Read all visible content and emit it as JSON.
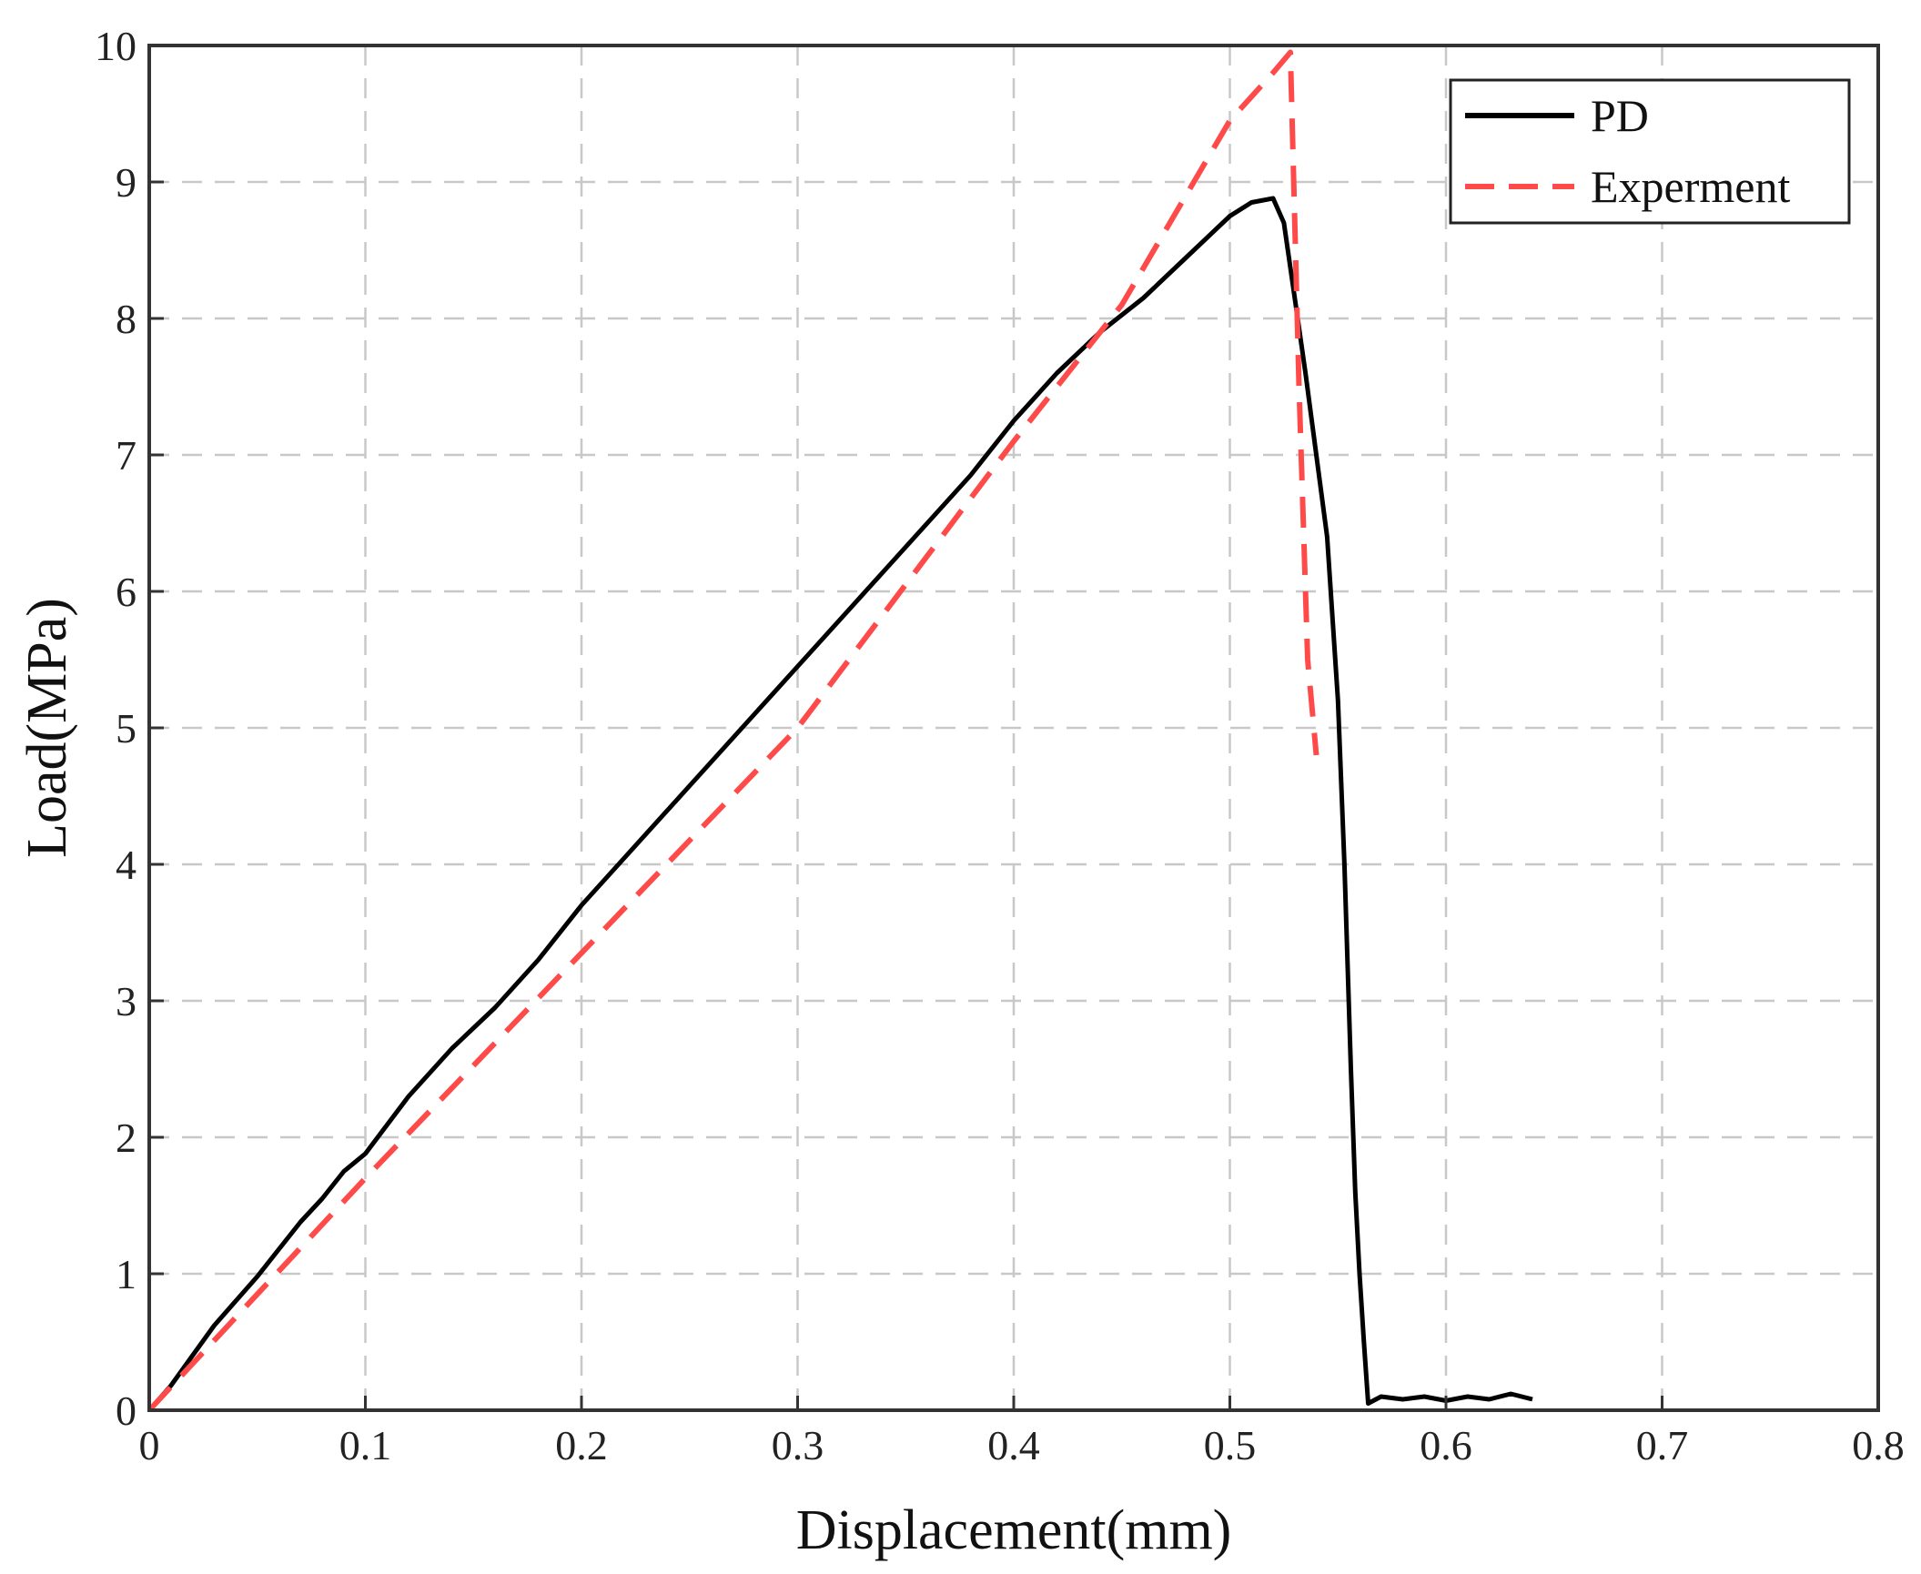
{
  "chart_data": {
    "type": "line",
    "xlabel": "Displacement(mm)",
    "ylabel": "Load(MPa)",
    "xlim": [
      0,
      0.8
    ],
    "ylim": [
      0,
      10
    ],
    "xticks": [
      "0",
      "0.1",
      "0.2",
      "0.3",
      "0.4",
      "0.5",
      "0.6",
      "0.7",
      "0.8"
    ],
    "yticks": [
      "0",
      "1",
      "2",
      "3",
      "4",
      "5",
      "6",
      "7",
      "8",
      "9",
      "10"
    ],
    "grid": true,
    "legend_position": "top-right",
    "series": [
      {
        "name": "PD",
        "color": "#000000",
        "style": "solid",
        "x": [
          0,
          0.01,
          0.02,
          0.03,
          0.04,
          0.05,
          0.06,
          0.07,
          0.08,
          0.09,
          0.1,
          0.12,
          0.14,
          0.16,
          0.18,
          0.2,
          0.22,
          0.24,
          0.26,
          0.28,
          0.3,
          0.32,
          0.34,
          0.36,
          0.38,
          0.4,
          0.42,
          0.44,
          0.46,
          0.48,
          0.5,
          0.51,
          0.52,
          0.525,
          0.53,
          0.535,
          0.54,
          0.545,
          0.55,
          0.553,
          0.556,
          0.558,
          0.56,
          0.562,
          0.564,
          0.57,
          0.58,
          0.59,
          0.6,
          0.61,
          0.62,
          0.63,
          0.64
        ],
        "y": [
          0,
          0.18,
          0.4,
          0.62,
          0.8,
          0.98,
          1.18,
          1.38,
          1.55,
          1.75,
          1.88,
          2.3,
          2.65,
          2.95,
          3.3,
          3.7,
          4.05,
          4.4,
          4.75,
          5.1,
          5.45,
          5.8,
          6.15,
          6.5,
          6.85,
          7.25,
          7.6,
          7.9,
          8.15,
          8.45,
          8.75,
          8.85,
          8.88,
          8.7,
          8.15,
          7.6,
          7.0,
          6.4,
          5.2,
          4.0,
          2.5,
          1.6,
          1.0,
          0.5,
          0.05,
          0.1,
          0.08,
          0.1,
          0.07,
          0.1,
          0.08,
          0.12,
          0.08
        ]
      },
      {
        "name": "Experment",
        "color": "#ff4a4a",
        "style": "dashed",
        "x": [
          0,
          0.1,
          0.2,
          0.3,
          0.4,
          0.45,
          0.5,
          0.52,
          0.528,
          0.532,
          0.536,
          0.54
        ],
        "y": [
          0,
          1.7,
          3.35,
          5.0,
          7.1,
          8.1,
          9.45,
          9.8,
          9.95,
          7.5,
          5.5,
          4.8
        ]
      }
    ]
  }
}
